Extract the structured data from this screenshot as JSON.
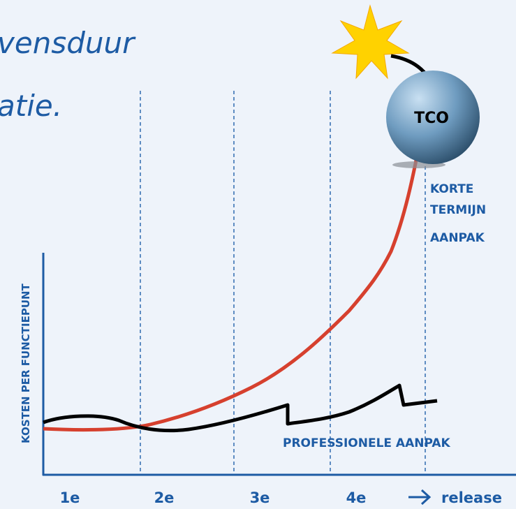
{
  "heading": {
    "lines": [
      "vensduur",
      "atie."
    ]
  },
  "axes": {
    "y_label": "KOSTEN PER FUNCTIEPUNT",
    "x_label": "release",
    "x_categories": [
      "1e",
      "2e",
      "3e",
      "4e"
    ]
  },
  "labels": {
    "tco": "TCO",
    "short_term": [
      "KORTE",
      "TERMIJN",
      "AANPAK"
    ],
    "professional": "PROFESSIONELE AANPAK"
  }
}
